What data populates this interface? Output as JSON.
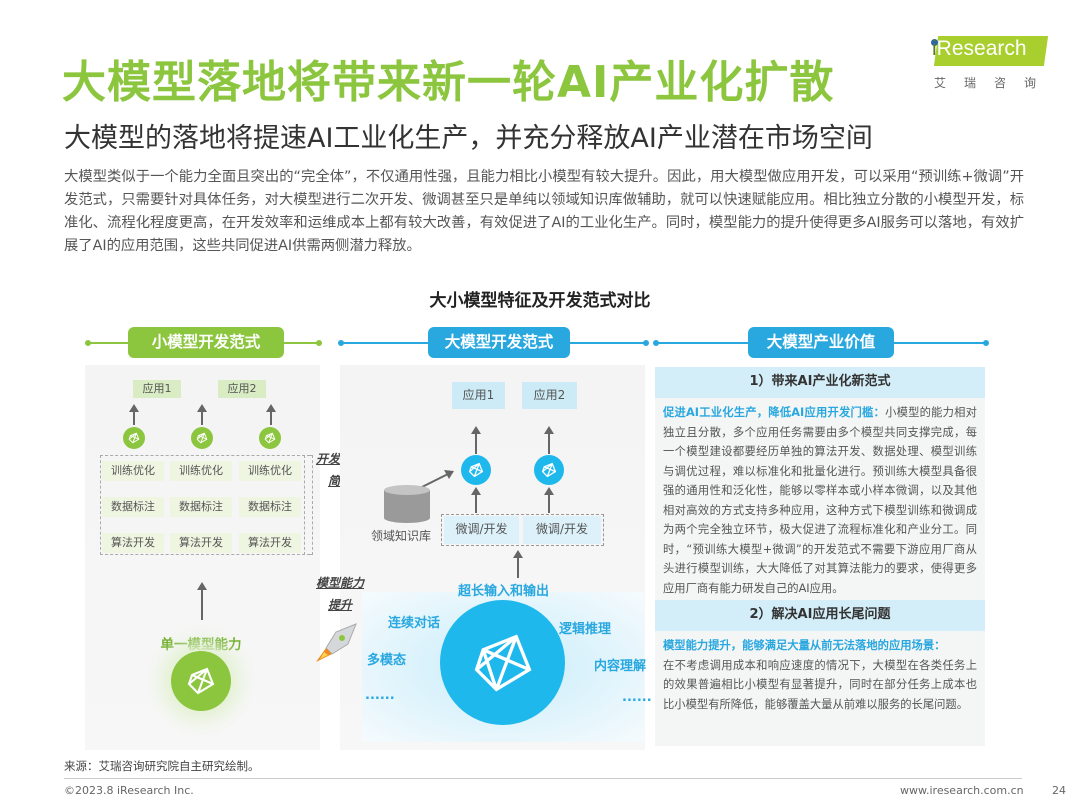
{
  "header": {
    "title": "大模型落地将带来新一轮AI产业化扩散",
    "subtitle": "大模型的落地将提速AI工业化生产，并充分释放AI产业潜在市场空间",
    "paragraph": "大模型类似于一个能力全面且突出的“完全体”，不仅通用性强，且能力相比小模型有较大提升。因此，用大模型做应用开发，可以采用“预训练+微调”开发范式，只需要针对具体任务，对大模型进行二次开发、微调甚至只是单纯以领域知识库做辅助，就可以快速赋能应用。相比独立分散的小模型开发，标准化、流程化程度更高，在开发效率和运维成本上都有较大改善，有效促进了AI的工业化生产。同时，模型能力的提升使得更多AI服务可以落地，有效扩展了AI的应用范围，这些共同促进AI供需两侧潜力释放。"
  },
  "logo": {
    "brand": "iResearch",
    "brand_i": "i",
    "brand_rest": "Research",
    "cn": "艾瑞咨询"
  },
  "diagram": {
    "title": "大小模型特征及开发范式对比",
    "colors": {
      "green": "#8cc63f",
      "blue": "#29a8e0"
    },
    "small": {
      "header": "小模型开发范式",
      "apps": [
        "应用1",
        "应用2"
      ],
      "rows": [
        "训练优化",
        "数据标注",
        "算法开发"
      ],
      "capability": "单一模型能力"
    },
    "notes": {
      "simplify": "开发过程简化",
      "upgrade": "模型能力提升"
    },
    "large": {
      "header": "大模型开发范式",
      "apps": [
        "应用1",
        "应用2"
      ],
      "knowledge_base": "领域知识库",
      "finetune": [
        "微调/开发",
        "微调/开发"
      ],
      "io": "超长输入和输出",
      "abilities": [
        "连续对话",
        "多模态",
        "逻辑推理",
        "内容理解"
      ],
      "ellipsis": "......"
    },
    "value": {
      "header": "大模型产业价值",
      "sections": [
        {
          "title": "1）带来AI产业化新范式",
          "lead": "促进AI工业化生产，降低AI应用开发门槛：",
          "body": "小模型的能力相对独立且分散，多个应用任务需要由多个模型共同支撑完成，每一个模型建设都要经历单独的算法开发、数据处理、模型训练与调优过程，难以标准化和批量化进行。预训练大模型具备很强的通用性和泛化性，能够以零样本或小样本微调，以及其他相对高效的方式支持多种应用，这种方式下模型训练和微调成为两个完全独立环节，极大促进了流程标准化和产业分工。同时，“预训练大模型+微调”的开发范式不需要下游应用厂商从头进行模型训练，大大降低了对其算法能力的要求，使得更多应用厂商有能力研发自己的AI应用。"
        },
        {
          "title": "2）解决AI应用长尾问题",
          "lead": "模型能力提升，能够满足大量从前无法落地的应用场景：",
          "body": "在不考虑调用成本和响应速度的情况下，大模型在各类任务上的效果普遍相比小模型有显著提升，同时在部分任务上成本也比小模型有所降低，能够覆盖大量从前难以服务的长尾问题。"
        }
      ]
    }
  },
  "footer": {
    "source": "来源：艾瑞咨询研究院自主研究绘制。",
    "copyright": "©2023.8 iResearch Inc.",
    "url": "www.iresearch.com.cn",
    "page": "24"
  }
}
